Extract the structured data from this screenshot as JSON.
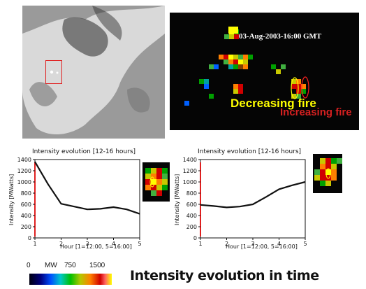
{
  "map": {
    "timestamp": "03-Aug-2003-16:00 GMT",
    "label_decreasing": "Decreasing fire",
    "label_increasing": "Increasing fire"
  },
  "chart_data": [
    {
      "type": "line",
      "title": "Intensity evolution [12-16 hours]",
      "xlabel": "Hour [1=12:00, 5=16:00]",
      "ylabel": "Intensity [MWatts]",
      "x": [
        1,
        2,
        3,
        4,
        5
      ],
      "x_dense": [
        1,
        1.5,
        2,
        2.5,
        3,
        3.5,
        4,
        4.5,
        5
      ],
      "y_dense": [
        1360,
        960,
        610,
        560,
        510,
        520,
        550,
        510,
        430
      ],
      "xlim": [
        1,
        5
      ],
      "ylim": [
        0,
        1400
      ],
      "yticks": [
        0,
        200,
        400,
        600,
        800,
        1000,
        1200,
        1400
      ],
      "xticks": [
        1,
        2,
        3,
        4,
        5
      ]
    },
    {
      "type": "line",
      "title": "Intensity evolution [12-16 hours]",
      "xlabel": "Hour [1=12:00, 5=16:00]",
      "ylabel": "Intensity [MWatts]",
      "x": [
        1,
        2,
        3,
        4,
        5
      ],
      "x_dense": [
        1,
        1.5,
        2,
        2.5,
        3,
        3.5,
        4,
        4.5,
        5
      ],
      "y_dense": [
        590,
        570,
        545,
        560,
        600,
        730,
        870,
        940,
        1000
      ],
      "xlim": [
        1,
        5
      ],
      "ylim": [
        0,
        1400
      ],
      "yticks": [
        0,
        200,
        400,
        600,
        800,
        1000,
        1200,
        1400
      ],
      "xticks": [
        1,
        2,
        3,
        4,
        5
      ]
    }
  ],
  "colorbar": {
    "label_min": "0",
    "label_unit": "MW",
    "label_mid": "750",
    "label_max": "1500"
  },
  "caption": "Intensity evolution in time",
  "colors": {
    "line": "#111111",
    "marker_red": "#e02020",
    "fire_yellow": "#ffff00"
  }
}
